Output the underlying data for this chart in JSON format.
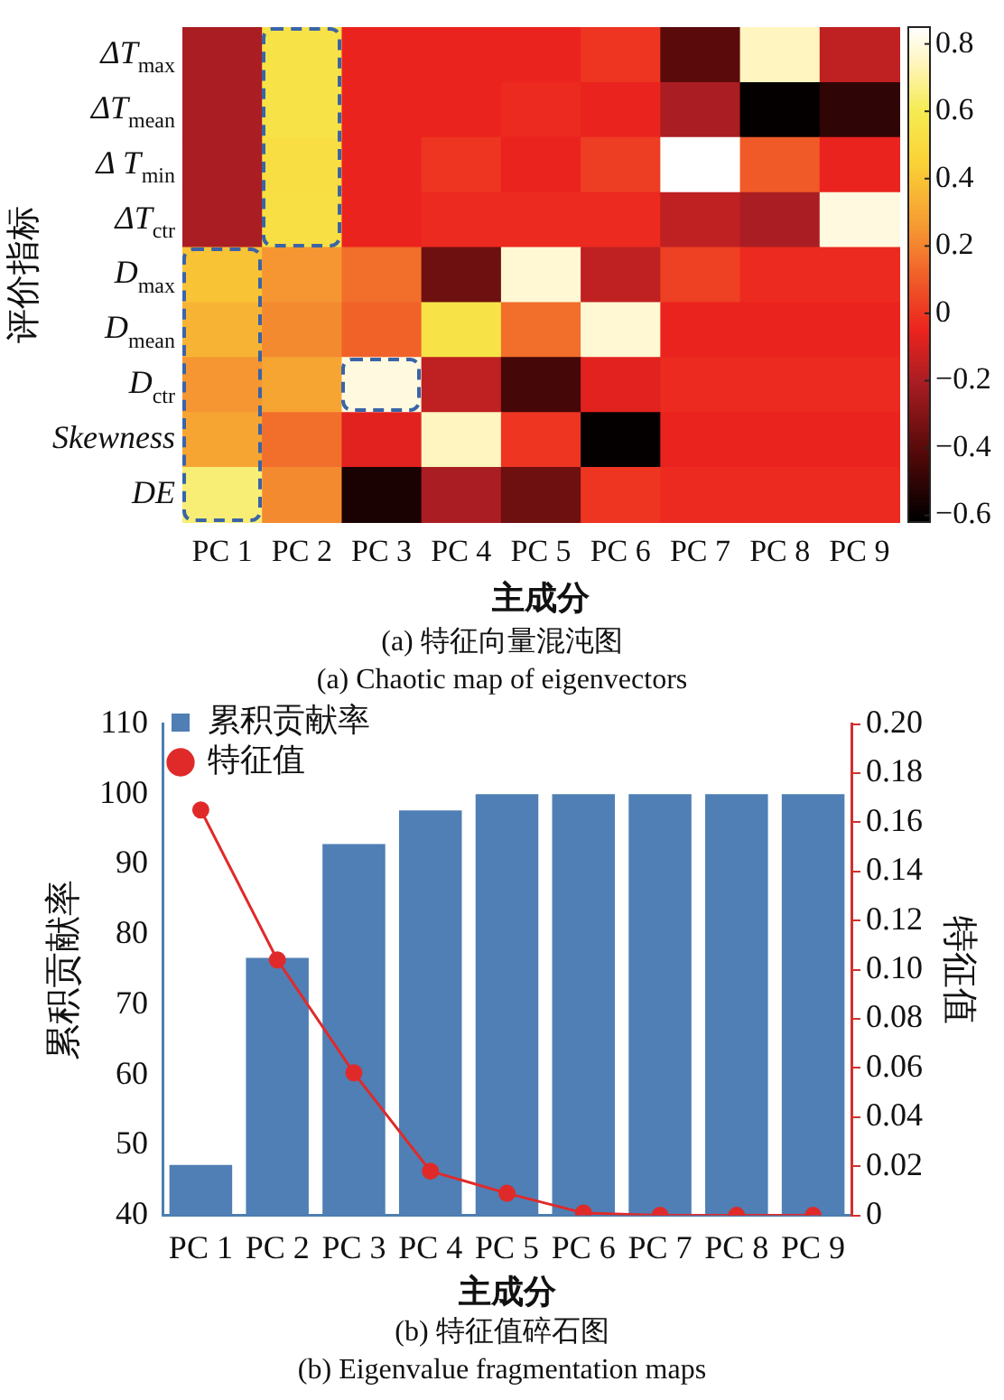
{
  "chart_data": [
    {
      "type": "heatmap",
      "title": "(a) 特征向量混沌图",
      "subtitle": "(a) Chaotic map of eigenvectors",
      "xlabel": "主成分",
      "ylabel": "评价指标",
      "categories": [
        "PC 1",
        "PC 2",
        "PC 3",
        "PC 4",
        "PC 5",
        "PC 6",
        "PC 7",
        "PC 8",
        "PC 9"
      ],
      "y_categories": [
        "ΔT$_{max}$",
        "ΔT$_{mean}$",
        "Δ T$_{min}$",
        "ΔT$_{ctr}$",
        "D$_{max}$",
        "D$_{mean}$",
        "D$_{ctr}$",
        "Skewness",
        "DE"
      ],
      "cells": [
        [
          -0.2,
          0.55,
          -0.05,
          -0.05,
          -0.05,
          0,
          -0.4,
          0.75,
          -0.15
        ],
        [
          -0.2,
          0.55,
          -0.05,
          -0.05,
          -0.03,
          -0.05,
          -0.2,
          -0.6,
          -0.5
        ],
        [
          -0.2,
          0.52,
          -0.05,
          0,
          -0.05,
          0.02,
          0.85,
          0.1,
          -0.05
        ],
        [
          -0.2,
          0.53,
          -0.05,
          -0.03,
          -0.03,
          -0.03,
          -0.15,
          -0.2,
          0.8
        ],
        [
          0.4,
          0.25,
          0.15,
          -0.35,
          0.78,
          -0.15,
          0.03,
          -0.03,
          -0.03
        ],
        [
          0.35,
          0.22,
          0.12,
          0.55,
          0.15,
          0.78,
          -0.05,
          -0.05,
          -0.05
        ],
        [
          0.25,
          0.3,
          0.8,
          -0.15,
          -0.45,
          -0.07,
          -0.03,
          -0.03,
          -0.03
        ],
        [
          0.3,
          0.15,
          -0.07,
          0.75,
          0,
          -0.6,
          -0.05,
          -0.05,
          -0.05
        ],
        [
          0.65,
          0.22,
          -0.55,
          -0.2,
          -0.35,
          0,
          -0.03,
          -0.03,
          -0.03
        ]
      ],
      "clim": [
        -0.62,
        0.85
      ],
      "cticks": [
        {
          "value": -0.6,
          "label": "−0.6"
        },
        {
          "value": -0.4,
          "label": "−0.4"
        },
        {
          "value": -0.2,
          "label": "−0.2"
        },
        0,
        0.2,
        0.4,
        0.6,
        0.8
      ]
    },
    {
      "type": "bar",
      "title": "(b) 特征值碎石图",
      "subtitle": "(b) Eigenvalue fragmentation maps",
      "xlabel": "主成分",
      "ylabel": "累积贡献率",
      "y2label": "特征值",
      "categories": [
        "PC 1",
        "PC 2",
        "PC 3",
        "PC 4",
        "PC 5",
        "PC 6",
        "PC 7",
        "PC 8",
        "PC 9"
      ],
      "series": [
        {
          "name": "累积贡献率",
          "color": "#4f7fb4",
          "values": [
            47.2,
            76.7,
            92.9,
            97.7,
            100,
            100,
            100,
            100,
            100
          ]
        },
        {
          "name": "特征值",
          "type": "line",
          "axis": "y2",
          "color": "#e02a2a",
          "values": [
            0.165,
            0.104,
            0.058,
            0.018,
            0.009,
            0.001,
            0,
            0,
            0
          ]
        }
      ],
      "ylim": [
        40,
        110
      ],
      "yticks": [
        40,
        50,
        60,
        70,
        80,
        90,
        100,
        110
      ],
      "y2lim": [
        0,
        0.2
      ],
      "y2ticks": [
        0,
        0.02,
        0.04,
        0.06,
        0.08,
        {
          "value": 0.1,
          "label": "0.10"
        },
        0.12,
        0.14,
        0.16,
        0.18,
        {
          "value": 0.2,
          "label": "0.20"
        }
      ],
      "legend": "top left",
      "marker": "circle",
      "grid": false
    }
  ]
}
